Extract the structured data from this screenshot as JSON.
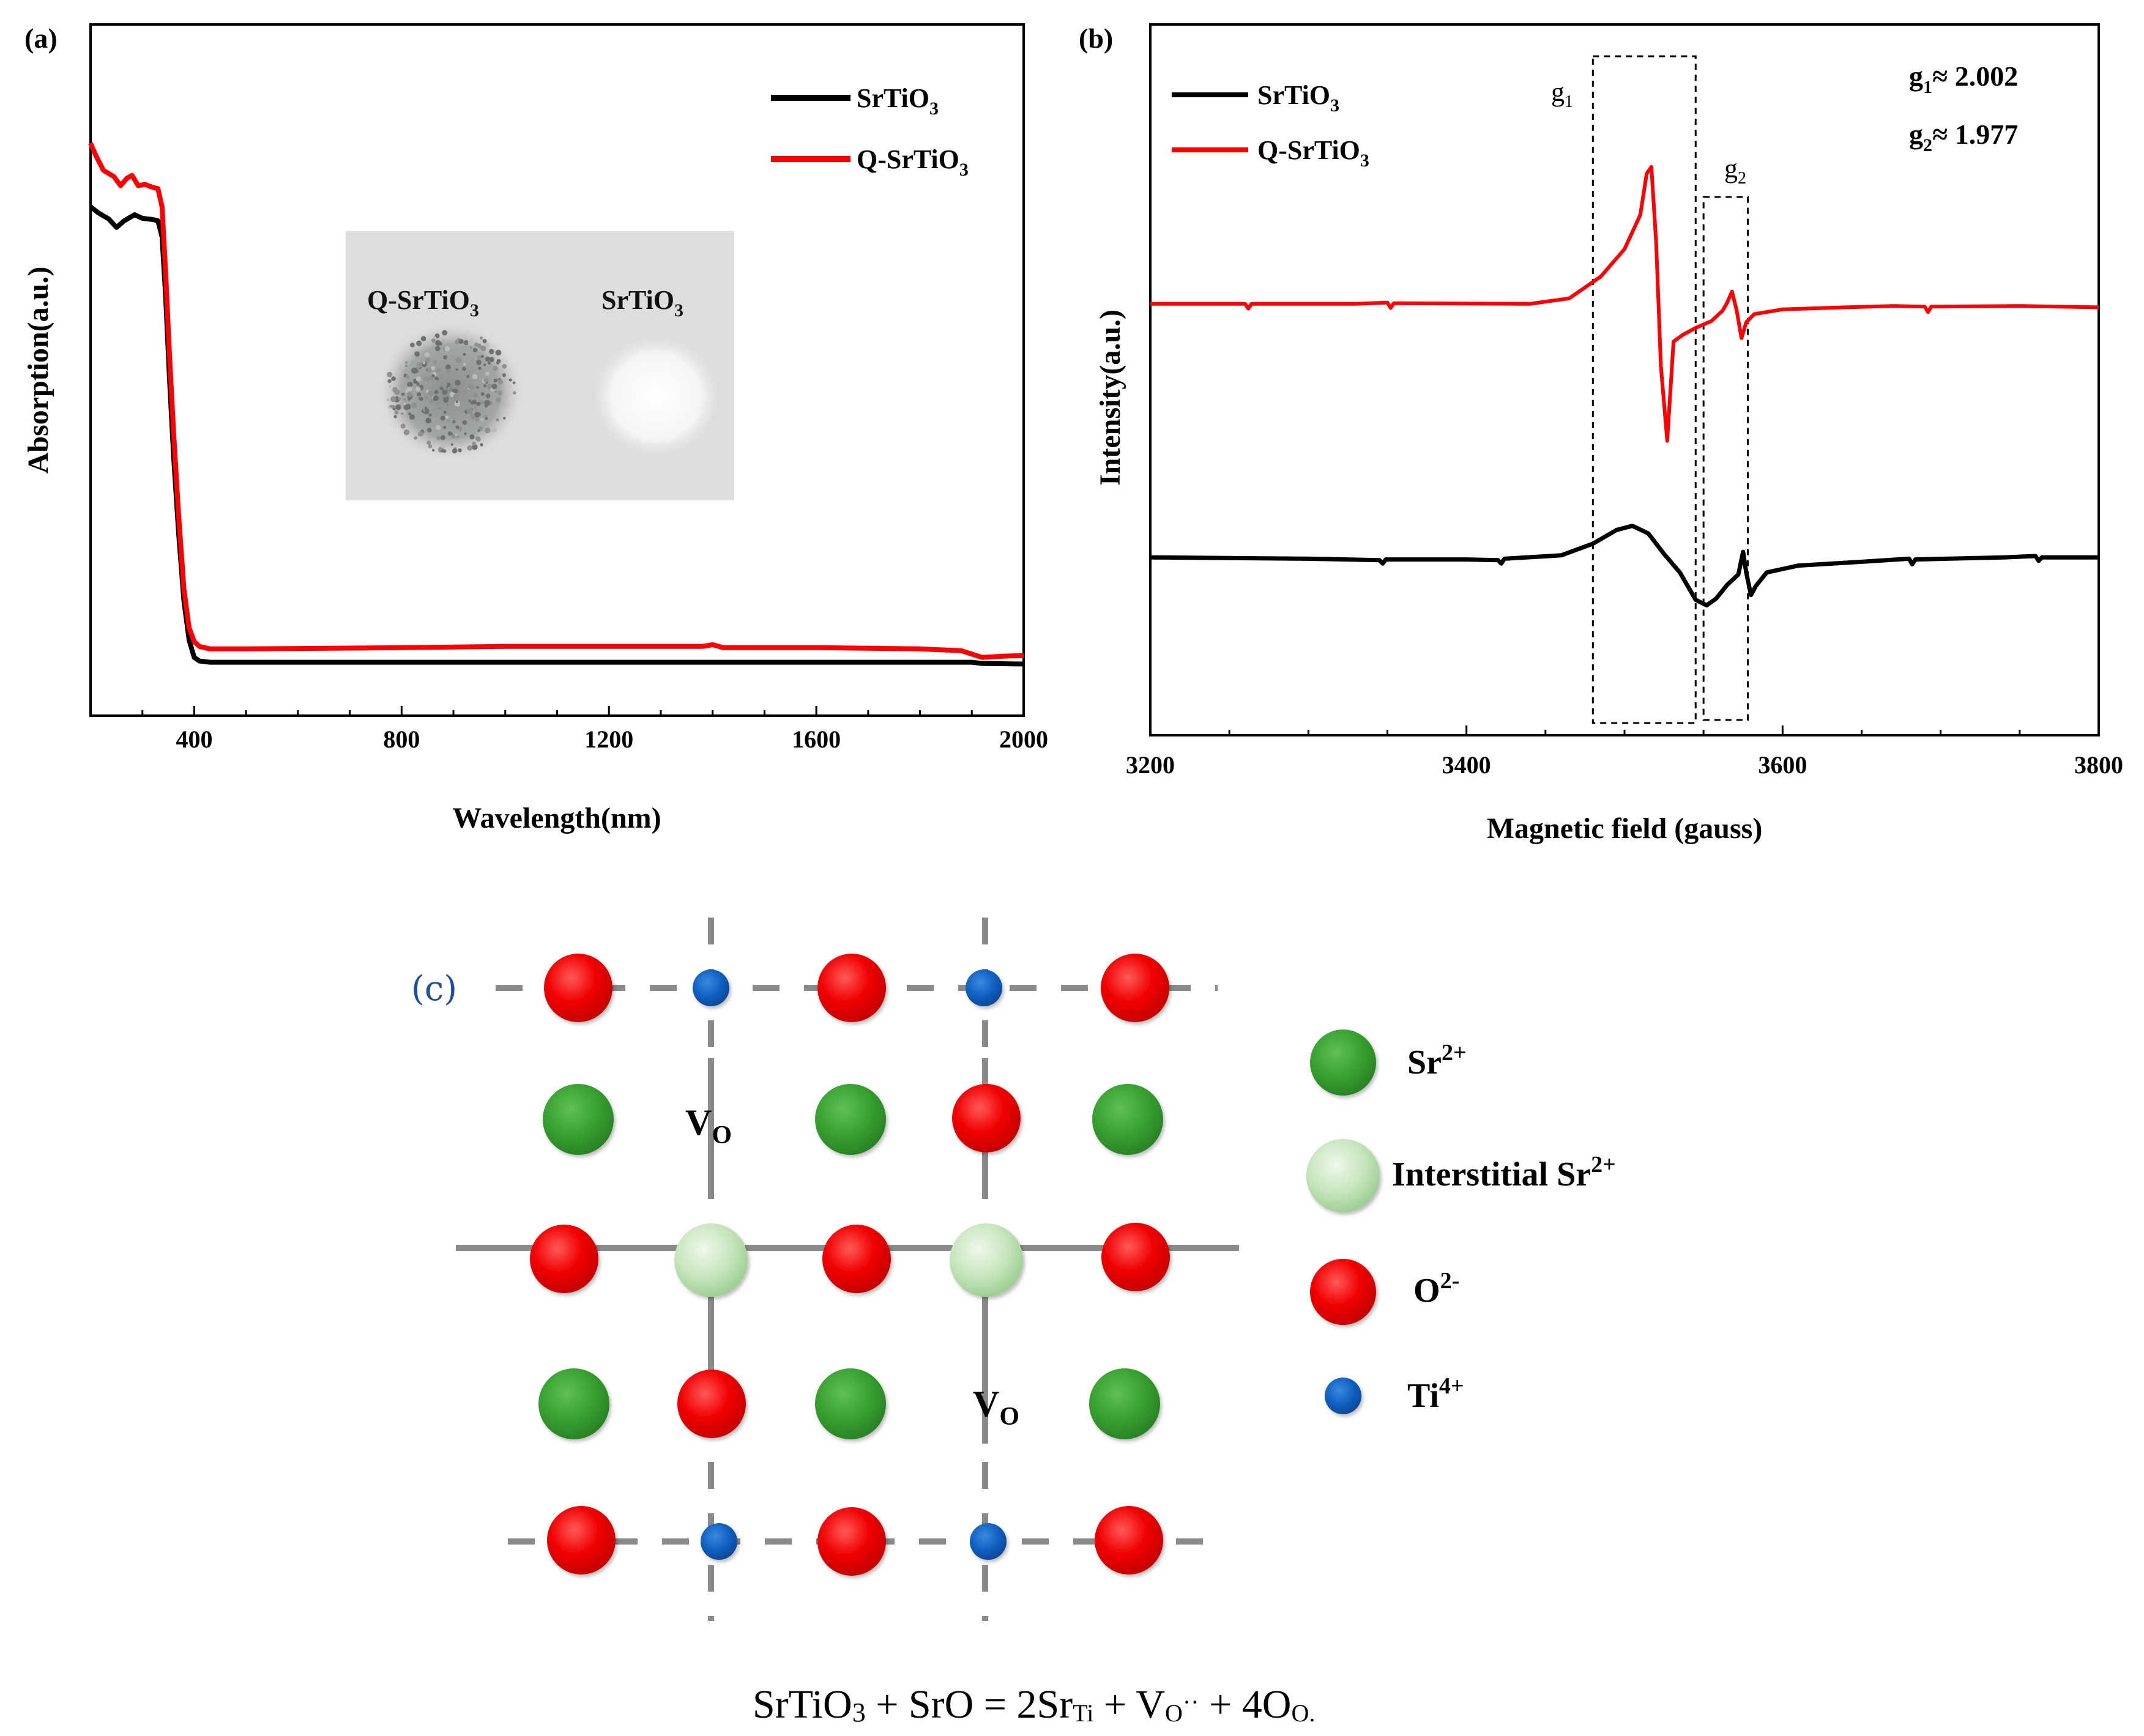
{
  "chart_data": [
    {
      "panel": "(a)",
      "type": "line",
      "xlabel": "Wavelength(nm)",
      "ylabel": "Absorption(a.u.)",
      "xlim": [
        200,
        2000
      ],
      "ylim": [
        0,
        1
      ],
      "xticks": [
        400,
        800,
        1200,
        1600,
        2000
      ],
      "series": [
        {
          "name": "SrTiO3",
          "color": "#000000",
          "points": [
            [
              200,
              0.81
            ],
            [
              215,
              0.8
            ],
            [
              235,
              0.79
            ],
            [
              250,
              0.776
            ],
            [
              265,
              0.787
            ],
            [
              285,
              0.797
            ],
            [
              300,
              0.791
            ],
            [
              320,
              0.789
            ],
            [
              330,
              0.787
            ],
            [
              338,
              0.76
            ],
            [
              345,
              0.66
            ],
            [
              352,
              0.53
            ],
            [
              360,
              0.4
            ],
            [
              370,
              0.27
            ],
            [
              380,
              0.16
            ],
            [
              390,
              0.095
            ],
            [
              400,
              0.066
            ],
            [
              410,
              0.06
            ],
            [
              430,
              0.058
            ],
            [
              600,
              0.058
            ],
            [
              800,
              0.058
            ],
            [
              1000,
              0.058
            ],
            [
              1200,
              0.058
            ],
            [
              1400,
              0.058
            ],
            [
              1600,
              0.058
            ],
            [
              1800,
              0.058
            ],
            [
              1900,
              0.058
            ],
            [
              1920,
              0.056
            ],
            [
              2000,
              0.055
            ]
          ]
        },
        {
          "name": "Q-SrTiO3",
          "color": "#ff0000",
          "points": [
            [
              200,
              0.915
            ],
            [
              210,
              0.895
            ],
            [
              225,
              0.87
            ],
            [
              245,
              0.86
            ],
            [
              258,
              0.845
            ],
            [
              270,
              0.857
            ],
            [
              280,
              0.862
            ],
            [
              292,
              0.845
            ],
            [
              305,
              0.847
            ],
            [
              320,
              0.842
            ],
            [
              330,
              0.84
            ],
            [
              338,
              0.81
            ],
            [
              345,
              0.7
            ],
            [
              352,
              0.57
            ],
            [
              360,
              0.44
            ],
            [
              370,
              0.3
            ],
            [
              380,
              0.18
            ],
            [
              390,
              0.115
            ],
            [
              400,
              0.092
            ],
            [
              410,
              0.084
            ],
            [
              430,
              0.08
            ],
            [
              500,
              0.08
            ],
            [
              800,
              0.082
            ],
            [
              1000,
              0.084
            ],
            [
              1200,
              0.084
            ],
            [
              1380,
              0.084
            ],
            [
              1400,
              0.087
            ],
            [
              1420,
              0.082
            ],
            [
              1600,
              0.082
            ],
            [
              1800,
              0.08
            ],
            [
              1880,
              0.077
            ],
            [
              1920,
              0.066
            ],
            [
              1960,
              0.068
            ],
            [
              2000,
              0.069
            ]
          ]
        }
      ],
      "legend": [
        "SrTiO3",
        "Q-SrTiO3"
      ],
      "legend_position": "top-right"
    },
    {
      "panel": "(b)",
      "type": "line",
      "xlabel": "Magnetic field (gauss)",
      "ylabel": "Intensity(a.u.)",
      "xlim": [
        3200,
        3800
      ],
      "ylim": [
        0,
        1
      ],
      "xticks": [
        3200,
        3400,
        3600,
        3800
      ],
      "series": [
        {
          "name": "SrTiO3",
          "color": "#000000",
          "points": [
            [
              3200,
              0.24
            ],
            [
              3300,
              0.238
            ],
            [
              3345,
              0.236
            ],
            [
              3347,
              0.231
            ],
            [
              3349,
              0.237
            ],
            [
              3400,
              0.237
            ],
            [
              3420,
              0.236
            ],
            [
              3422,
              0.231
            ],
            [
              3424,
              0.238
            ],
            [
              3460,
              0.243
            ],
            [
              3480,
              0.26
            ],
            [
              3495,
              0.28
            ],
            [
              3505,
              0.286
            ],
            [
              3515,
              0.275
            ],
            [
              3525,
              0.245
            ],
            [
              3535,
              0.218
            ],
            [
              3545,
              0.178
            ],
            [
              3552,
              0.17
            ],
            [
              3558,
              0.18
            ],
            [
              3565,
              0.2
            ],
            [
              3572,
              0.215
            ],
            [
              3575,
              0.248
            ],
            [
              3577,
              0.218
            ],
            [
              3580,
              0.185
            ],
            [
              3583,
              0.198
            ],
            [
              3590,
              0.218
            ],
            [
              3610,
              0.228
            ],
            [
              3660,
              0.235
            ],
            [
              3680,
              0.238
            ],
            [
              3682,
              0.23
            ],
            [
              3684,
              0.237
            ],
            [
              3740,
              0.24
            ],
            [
              3760,
              0.242
            ],
            [
              3762,
              0.235
            ],
            [
              3764,
              0.24
            ],
            [
              3800,
              0.24
            ]
          ]
        },
        {
          "name": "Q-SrTiO3",
          "color": "#ff0000",
          "points": [
            [
              3200,
              0.61
            ],
            [
              3260,
              0.61
            ],
            [
              3262,
              0.603
            ],
            [
              3264,
              0.61
            ],
            [
              3330,
              0.61
            ],
            [
              3350,
              0.612
            ],
            [
              3352,
              0.604
            ],
            [
              3354,
              0.611
            ],
            [
              3440,
              0.61
            ],
            [
              3465,
              0.618
            ],
            [
              3485,
              0.65
            ],
            [
              3500,
              0.69
            ],
            [
              3510,
              0.74
            ],
            [
              3514,
              0.8
            ],
            [
              3517,
              0.81
            ],
            [
              3520,
              0.7
            ],
            [
              3523,
              0.52
            ],
            [
              3527,
              0.41
            ],
            [
              3531,
              0.555
            ],
            [
              3537,
              0.565
            ],
            [
              3545,
              0.575
            ],
            [
              3555,
              0.585
            ],
            [
              3562,
              0.6
            ],
            [
              3565,
              0.612
            ],
            [
              3568,
              0.628
            ],
            [
              3571,
              0.6
            ],
            [
              3574,
              0.56
            ],
            [
              3577,
              0.583
            ],
            [
              3582,
              0.595
            ],
            [
              3600,
              0.602
            ],
            [
              3640,
              0.605
            ],
            [
              3670,
              0.607
            ],
            [
              3690,
              0.606
            ],
            [
              3692,
              0.598
            ],
            [
              3694,
              0.606
            ],
            [
              3750,
              0.607
            ],
            [
              3800,
              0.605
            ]
          ]
        }
      ],
      "legend": [
        "SrTiO3",
        "Q-SrTiO3"
      ],
      "legend_position": "top-left",
      "annotations": [
        "g1",
        "g2",
        "g1≈ 2.002",
        "g2≈ 1.977"
      ],
      "boxes_x": [
        [
          3480,
          3545
        ],
        [
          3550,
          3578
        ]
      ]
    }
  ],
  "panel_a": {
    "label": "(a)",
    "xlabel": "Wavelength(nm)",
    "ylabel": "Absorption(a.u.)",
    "ticks": [
      "400",
      "800",
      "1200",
      "1600",
      "2000"
    ],
    "legend": [
      {
        "base": "SrTiO",
        "sub": "3"
      },
      {
        "base": "Q-SrTiO",
        "sub": "3"
      }
    ],
    "photo": {
      "left_label_base": "Q-SrTiO",
      "left_label_sub": "3",
      "right_label_base": "SrTiO",
      "right_label_sub": "3"
    }
  },
  "panel_b": {
    "label": "(b)",
    "xlabel": "Magnetic field (gauss)",
    "ylabel": "Intensity(a.u.)",
    "ticks": [
      "3200",
      "3400",
      "3600",
      "3800"
    ],
    "legend": [
      {
        "base": "SrTiO",
        "sub": "3"
      },
      {
        "base": "Q-SrTiO",
        "sub": "3"
      }
    ],
    "g1_base": "g",
    "g1_sub": "1",
    "g2_base": "g",
    "g2_sub": "2",
    "gvalue1": {
      "base": "g",
      "sub": "1",
      "rest": "≈ 2.002"
    },
    "gvalue2": {
      "base": "g",
      "sub": "2",
      "rest": "≈ 1.977"
    }
  },
  "panel_c": {
    "label": "(c)",
    "vo1": {
      "base": "V",
      "sub": "O"
    },
    "vo2": {
      "base": "V",
      "sub": "O"
    },
    "legend": [
      {
        "name": "Sr",
        "sup": "2+",
        "kind": "sr"
      },
      {
        "name": "Interstitial Sr",
        "sup": "2+",
        "kind": "isr"
      },
      {
        "name": "O",
        "sup": "2-",
        "kind": "o"
      },
      {
        "name": "Ti",
        "sup": "4+",
        "kind": "ti"
      }
    ]
  },
  "equation": {
    "p1": "SrTiO",
    "p1_sub": "3",
    "p2": " + SrO = 2Sr",
    "p2_sub": "Ti",
    "p3": " + V",
    "p3_sub": "O",
    "p3_sup": "··",
    "p4": " + 4O",
    "p4_sub": "O."
  },
  "colors": {
    "red": "#ff0000",
    "black": "#000000",
    "green": "#3b9e35",
    "light_green": "#c8e6c0",
    "blue": "#1060c0",
    "grid_line": "#8a8a8a"
  }
}
